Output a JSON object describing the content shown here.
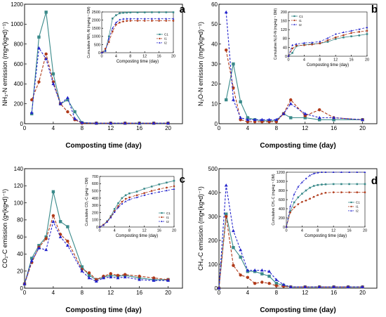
{
  "figure": {
    "legend_labels": [
      "C1",
      "I1",
      "I2"
    ],
    "colors": {
      "C1": "#3a8a8a",
      "I1": "#b03a1a",
      "I2": "#2323cc"
    }
  },
  "chart_data": [
    {
      "panel_letter": "a",
      "type": "line",
      "ylabel": "NH₃-N emission (mg•(kg•d)⁻¹)",
      "xlabel": "Composting time (day)",
      "xlim": [
        0,
        22
      ],
      "ylim": [
        0,
        1200
      ],
      "xticks": [
        0,
        4,
        8,
        12,
        16,
        20
      ],
      "yticks": [
        0,
        200,
        400,
        600,
        800,
        1000,
        1200
      ],
      "series": [
        {
          "name": "C1",
          "x": [
            1,
            2,
            3,
            4,
            5,
            6,
            7,
            8,
            10,
            12,
            14,
            16,
            18,
            20
          ],
          "values": [
            100,
            870,
            1120,
            500,
            200,
            240,
            120,
            10,
            5,
            5,
            5,
            5,
            5,
            5
          ]
        },
        {
          "name": "I1",
          "x": [
            1,
            2,
            3,
            4,
            5,
            6,
            7,
            8,
            10,
            12,
            14,
            16,
            18,
            20
          ],
          "values": [
            240,
            420,
            700,
            420,
            200,
            120,
            40,
            5,
            5,
            5,
            5,
            5,
            5,
            5
          ]
        },
        {
          "name": "I2",
          "x": [
            1,
            2,
            3,
            4,
            5,
            6,
            7,
            8,
            10,
            12,
            14,
            16,
            18,
            20
          ],
          "values": [
            110,
            760,
            650,
            400,
            200,
            260,
            50,
            10,
            5,
            5,
            5,
            5,
            5,
            5
          ]
        }
      ],
      "inset": {
        "ylabel": "Cumulative NH₃-N (mg•kg⁻¹ DM)",
        "xlabel": "Composting time (day)",
        "xlim": [
          0,
          20
        ],
        "ylim": [
          0,
          2500
        ],
        "xticks": [
          0,
          4,
          8,
          12,
          16,
          20
        ],
        "yticks": [
          0,
          500,
          1000,
          1500,
          2000,
          2500
        ],
        "legend_position": "right",
        "series": [
          {
            "name": "C1",
            "x": [
              0,
              1,
              2,
              3,
              4,
              5,
              6,
              7,
              8,
              10,
              12,
              14,
              16,
              18,
              20
            ],
            "values": [
              0,
              120,
              1000,
              2100,
              2300,
              2420,
              2450,
              2460,
              2470,
              2470,
              2475,
              2480,
              2480,
              2480,
              2480
            ]
          },
          {
            "name": "I1",
            "x": [
              0,
              1,
              2,
              3,
              4,
              5,
              6,
              7,
              8,
              10,
              12,
              14,
              16,
              18,
              20
            ],
            "values": [
              0,
              240,
              650,
              1300,
              1720,
              1850,
              1920,
              1950,
              1960,
              1960,
              1960,
              1960,
              1960,
              1960,
              1960
            ]
          },
          {
            "name": "I2",
            "x": [
              0,
              1,
              2,
              3,
              4,
              5,
              6,
              7,
              8,
              10,
              12,
              14,
              16,
              18,
              20
            ],
            "values": [
              0,
              100,
              860,
              1500,
              1850,
              2020,
              2070,
              2080,
              2080,
              2080,
              2080,
              2080,
              2080,
              2080,
              2080
            ]
          }
        ]
      }
    },
    {
      "panel_letter": "b",
      "type": "line",
      "ylabel": "N₂O-N emission (mg•(kg•d)⁻¹)",
      "xlabel": "Composting time (day)",
      "xlim": [
        0,
        22
      ],
      "ylim": [
        0,
        60
      ],
      "xticks": [
        0,
        4,
        8,
        12,
        16,
        20
      ],
      "yticks": [
        0,
        10,
        20,
        30,
        40,
        50,
        60
      ],
      "series": [
        {
          "name": "C1",
          "x": [
            1,
            2,
            3,
            4,
            5,
            6,
            7,
            8,
            9,
            10,
            12,
            14,
            16,
            20
          ],
          "values": [
            12,
            30,
            11,
            3,
            2,
            1.5,
            1.5,
            1.5,
            5,
            3,
            3,
            2,
            2,
            2
          ]
        },
        {
          "name": "I1",
          "x": [
            1,
            2,
            3,
            4,
            5,
            6,
            7,
            8,
            9,
            10,
            12,
            14,
            16,
            20
          ],
          "values": [
            37,
            18,
            2,
            1,
            1,
            1,
            1,
            1,
            5,
            12,
            4,
            7,
            3,
            2
          ]
        },
        {
          "name": "I2",
          "x": [
            1,
            2,
            3,
            4,
            5,
            6,
            7,
            8,
            9,
            10,
            12,
            14,
            16,
            20
          ],
          "values": [
            56,
            12,
            3,
            2,
            2,
            2,
            2,
            2,
            5,
            10,
            5,
            3,
            3,
            2
          ]
        }
      ],
      "inset": {
        "ylabel": "Cumulative N₂O-N (mg•kg⁻¹ DM)",
        "xlabel": "Composting time (day)",
        "xlim": [
          0,
          20
        ],
        "ylim": [
          0,
          200
        ],
        "xticks": [
          0,
          4,
          8,
          12,
          16,
          20
        ],
        "yticks": [
          0,
          40,
          80,
          120,
          160,
          200
        ],
        "legend_position": "top-left",
        "series": [
          {
            "name": "C1",
            "x": [
              0,
              1,
              2,
              4,
              6,
              8,
              10,
              12,
              14,
              16,
              18,
              20
            ],
            "values": [
              0,
              15,
              45,
              52,
              55,
              58,
              65,
              78,
              85,
              90,
              94,
              100
            ]
          },
          {
            "name": "I1",
            "x": [
              0,
              1,
              2,
              4,
              6,
              8,
              10,
              12,
              14,
              16,
              18,
              20
            ],
            "values": [
              0,
              35,
              48,
              50,
              53,
              58,
              72,
              85,
              95,
              105,
              110,
              115
            ]
          },
          {
            "name": "I2",
            "x": [
              0,
              1,
              2,
              4,
              6,
              8,
              10,
              12,
              14,
              16,
              18,
              20
            ],
            "values": [
              0,
              50,
              55,
              60,
              62,
              66,
              82,
              100,
              108,
              115,
              122,
              130
            ]
          }
        ]
      }
    },
    {
      "panel_letter": "c",
      "type": "line",
      "ylabel": "CO₂-C emission (g•(kg•d)⁻¹)",
      "xlabel": "Composting time (day)",
      "xlim": [
        0,
        22
      ],
      "ylim": [
        0,
        140
      ],
      "xticks": [
        0,
        4,
        8,
        12,
        16,
        20
      ],
      "yticks": [
        0,
        20,
        40,
        60,
        80,
        100,
        120,
        140
      ],
      "series": [
        {
          "name": "C1",
          "x": [
            0,
            1,
            2,
            3,
            4,
            5,
            6,
            8,
            9,
            10,
            11,
            12,
            13,
            14,
            16,
            18,
            20
          ],
          "values": [
            5,
            35,
            50,
            60,
            113,
            78,
            72,
            25,
            15,
            10,
            13,
            15,
            14,
            15,
            12,
            10,
            10
          ]
        },
        {
          "name": "I1",
          "x": [
            0,
            1,
            2,
            3,
            4,
            5,
            6,
            8,
            9,
            10,
            11,
            12,
            13,
            14,
            16,
            18,
            20
          ],
          "values": [
            5,
            30,
            48,
            58,
            85,
            63,
            55,
            22,
            18,
            10,
            14,
            17,
            15,
            16,
            14,
            12,
            10
          ]
        },
        {
          "name": "I2",
          "x": [
            0,
            1,
            2,
            3,
            4,
            5,
            6,
            8,
            9,
            10,
            11,
            12,
            13,
            14,
            16,
            18,
            20
          ],
          "values": [
            5,
            32,
            47,
            45,
            78,
            60,
            50,
            20,
            12,
            8,
            12,
            13,
            12,
            13,
            10,
            9,
            9
          ]
        }
      ],
      "inset": {
        "ylabel": "Cumulative CO₂-C (g•kg⁻¹ DM)",
        "xlabel": "Composting time (day)",
        "xlim": [
          0,
          20
        ],
        "ylim": [
          0,
          700
        ],
        "xticks": [
          0,
          4,
          8,
          12,
          16,
          20
        ],
        "yticks": [
          0,
          100,
          200,
          300,
          400,
          500,
          600,
          700
        ],
        "legend_position": "bottom-right",
        "series": [
          {
            "name": "C1",
            "x": [
              0,
              1,
              2,
              3,
              4,
              5,
              6,
              7,
              8,
              10,
              12,
              14,
              16,
              18,
              20
            ],
            "values": [
              0,
              30,
              80,
              150,
              250,
              330,
              400,
              440,
              465,
              490,
              530,
              560,
              590,
              615,
              640
            ]
          },
          {
            "name": "I1",
            "x": [
              0,
              1,
              2,
              3,
              4,
              5,
              6,
              7,
              8,
              10,
              12,
              14,
              16,
              18,
              20
            ],
            "values": [
              0,
              30,
              75,
              140,
              220,
              290,
              350,
              390,
              410,
              440,
              470,
              500,
              525,
              545,
              565
            ]
          },
          {
            "name": "I2",
            "x": [
              0,
              1,
              2,
              3,
              4,
              5,
              6,
              7,
              8,
              10,
              12,
              14,
              16,
              18,
              20
            ],
            "values": [
              0,
              25,
              70,
              130,
              205,
              270,
              320,
              355,
              380,
              410,
              440,
              465,
              485,
              505,
              525
            ]
          }
        ]
      }
    },
    {
      "panel_letter": "d",
      "type": "line",
      "ylabel": "CH₄-C emission (mg•(kg•d)⁻¹)",
      "xlabel": "Composting time (day)",
      "xlim": [
        0,
        22
      ],
      "ylim": [
        0,
        500
      ],
      "xticks": [
        0,
        4,
        8,
        12,
        16,
        20
      ],
      "yticks": [
        0,
        100,
        200,
        300,
        400,
        500
      ],
      "series": [
        {
          "name": "C1",
          "x": [
            0,
            1,
            2,
            3,
            4,
            5,
            6,
            7,
            8,
            9,
            10,
            12,
            14,
            16,
            18,
            20
          ],
          "values": [
            0,
            310,
            170,
            130,
            70,
            70,
            60,
            50,
            20,
            12,
            5,
            5,
            5,
            5,
            5,
            5
          ]
        },
        {
          "name": "I1",
          "x": [
            0,
            1,
            2,
            3,
            4,
            5,
            6,
            7,
            8,
            9,
            10,
            12,
            14,
            16,
            18,
            20
          ],
          "values": [
            0,
            300,
            95,
            55,
            45,
            20,
            25,
            20,
            10,
            8,
            5,
            5,
            5,
            5,
            5,
            5
          ]
        },
        {
          "name": "I2",
          "x": [
            0,
            1,
            2,
            3,
            4,
            5,
            6,
            7,
            8,
            9,
            10,
            12,
            14,
            16,
            18,
            20
          ],
          "values": [
            0,
            430,
            240,
            160,
            75,
            75,
            75,
            70,
            35,
            15,
            5,
            5,
            5,
            5,
            5,
            5
          ]
        }
      ],
      "inset": {
        "ylabel": "Cumulative CH₄-C (mg•kg⁻¹ DM)",
        "xlabel": "Composting time (day)",
        "xlim": [
          0,
          20
        ],
        "ylim": [
          0,
          1200
        ],
        "xticks": [
          0,
          4,
          8,
          12,
          16,
          20
        ],
        "yticks": [
          0,
          200,
          400,
          600,
          800,
          1000,
          1200
        ],
        "legend_position": "right",
        "series": [
          {
            "name": "C1",
            "x": [
              0,
              1,
              2,
              3,
              4,
              5,
              6,
              7,
              8,
              9,
              10,
              12,
              14,
              16,
              18,
              20
            ],
            "values": [
              0,
              350,
              540,
              650,
              730,
              800,
              860,
              900,
              920,
              930,
              935,
              940,
              940,
              940,
              940,
              940
            ]
          },
          {
            "name": "I1",
            "x": [
              0,
              1,
              2,
              3,
              4,
              5,
              6,
              7,
              8,
              9,
              10,
              12,
              14,
              16,
              18,
              20
            ],
            "values": [
              0,
              320,
              430,
              500,
              550,
              580,
              620,
              660,
              700,
              730,
              750,
              760,
              760,
              760,
              760,
              760
            ]
          },
          {
            "name": "I2",
            "x": [
              0,
              1,
              2,
              3,
              4,
              5,
              6,
              7,
              8,
              9,
              10,
              12,
              14,
              16,
              18,
              20
            ],
            "values": [
              0,
              450,
              720,
              880,
              980,
              1060,
              1130,
              1170,
              1190,
              1200,
              1200,
              1200,
              1200,
              1200,
              1200,
              1200
            ]
          }
        ]
      }
    }
  ]
}
